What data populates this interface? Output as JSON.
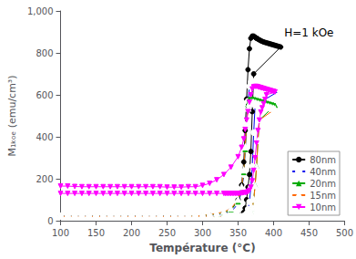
{
  "chart_data": {
    "type": "line",
    "xlabel": "Température (°C)",
    "ylabel": "M₁ₖₒₑ (emu/cm³)",
    "xlim": [
      100,
      500
    ],
    "ylim": [
      0,
      1000
    ],
    "xticks": [
      100,
      150,
      200,
      250,
      300,
      350,
      400,
      450,
      500
    ],
    "yticks": [
      0,
      200,
      400,
      600,
      800,
      1000
    ],
    "grid": false,
    "legend": "lower right",
    "annotations": [
      {
        "text": "H=1 kOe",
        "x": 415,
        "y": 870
      }
    ],
    "series": [
      {
        "name": "80nm",
        "color": "#000000",
        "marker": "circle",
        "x": [
          100,
          110,
          120,
          130,
          140,
          150,
          160,
          170,
          180,
          190,
          200,
          210,
          220,
          230,
          240,
          250,
          260,
          270,
          280,
          290,
          300,
          310,
          320,
          330,
          340,
          350,
          355,
          358,
          360,
          362,
          364,
          366,
          368,
          370,
          372,
          374,
          375,
          376,
          377,
          378,
          380,
          382,
          384,
          386,
          388,
          390,
          392,
          394,
          396,
          398,
          400,
          402,
          404,
          406,
          408,
          410,
          372,
          370,
          368,
          366,
          364,
          362,
          360,
          358,
          356,
          354,
          352,
          350,
          348,
          346,
          344,
          342,
          340,
          338,
          336,
          334,
          332,
          330,
          320,
          310,
          300,
          290,
          280,
          270,
          260,
          250,
          240,
          230,
          220,
          210,
          200,
          190,
          180,
          170,
          160,
          150,
          140,
          130,
          120,
          110,
          100
        ],
        "values": [
          20,
          20,
          20,
          20,
          20,
          20,
          20,
          20,
          20,
          20,
          20,
          20,
          20,
          20,
          20,
          20,
          20,
          20,
          20,
          20,
          22,
          25,
          28,
          35,
          50,
          100,
          170,
          280,
          430,
          580,
          720,
          820,
          870,
          880,
          880,
          875,
          872,
          870,
          868,
          866,
          862,
          858,
          855,
          852,
          850,
          848,
          846,
          844,
          842,
          840,
          838,
          836,
          834,
          832,
          830,
          828,
          700,
          520,
          330,
          220,
          160,
          100,
          60,
          40,
          30,
          25,
          22,
          20,
          20,
          20,
          20,
          20,
          20,
          20,
          20,
          20,
          20,
          20,
          20,
          20,
          20,
          20,
          20,
          20,
          20,
          20,
          20,
          20,
          20,
          20,
          20,
          20,
          20,
          20,
          20,
          20,
          20,
          20,
          20,
          20,
          20
        ]
      },
      {
        "name": "40nm",
        "color": "#0000ee",
        "marker": "circle-open",
        "x": [
          100,
          110,
          120,
          130,
          140,
          150,
          160,
          170,
          180,
          190,
          200,
          210,
          220,
          230,
          240,
          250,
          260,
          270,
          280,
          290,
          300,
          310,
          320,
          330,
          340,
          350,
          355,
          358,
          360,
          362,
          364,
          366,
          368,
          370,
          372,
          374,
          376,
          378,
          380,
          382,
          384,
          386,
          388,
          390,
          392,
          394,
          396,
          398,
          400,
          402,
          404,
          406,
          408,
          410,
          374,
          372,
          370,
          368,
          366,
          364,
          362,
          360,
          358,
          356,
          354,
          352,
          350,
          348,
          346,
          344,
          342,
          340,
          338,
          336,
          334,
          332,
          330,
          320,
          310,
          300,
          290,
          280,
          270,
          260,
          250,
          240,
          230,
          220,
          210,
          200,
          190,
          180,
          170,
          160,
          150,
          140,
          130,
          120,
          110,
          100
        ],
        "values": [
          20,
          20,
          20,
          20,
          20,
          20,
          20,
          20,
          20,
          20,
          20,
          20,
          20,
          20,
          20,
          20,
          20,
          20,
          20,
          20,
          20,
          22,
          25,
          30,
          42,
          80,
          140,
          220,
          340,
          460,
          570,
          640,
          660,
          665,
          665,
          663,
          660,
          658,
          655,
          652,
          650,
          648,
          645,
          643,
          641,
          639,
          637,
          635,
          633,
          631,
          629,
          627,
          625,
          623,
          550,
          420,
          260,
          160,
          90,
          55,
          35,
          25,
          22,
          20,
          20,
          20,
          20,
          20,
          20,
          20,
          20,
          20,
          20,
          20,
          20,
          20,
          20,
          20,
          20,
          20,
          20,
          20,
          20,
          20,
          20,
          20,
          20,
          20,
          20,
          20,
          20,
          20,
          20,
          20,
          20,
          20,
          20,
          20,
          20,
          20
        ]
      },
      {
        "name": "20nm",
        "color": "#00aa00",
        "marker": "triangle",
        "x": [
          100,
          110,
          120,
          130,
          140,
          150,
          160,
          170,
          180,
          190,
          200,
          210,
          220,
          230,
          240,
          250,
          260,
          270,
          280,
          290,
          300,
          310,
          320,
          330,
          340,
          350,
          355,
          358,
          360,
          362,
          364,
          366,
          368,
          370,
          372,
          374,
          376,
          378,
          380,
          382,
          384,
          386,
          388,
          390,
          392,
          394,
          396,
          398,
          400,
          402,
          380,
          378,
          376,
          374,
          372,
          370,
          368,
          366,
          364,
          362,
          360,
          358,
          356,
          354,
          352,
          350,
          348,
          346,
          344,
          342,
          340,
          338,
          336,
          334,
          332,
          330,
          320,
          310,
          300,
          290,
          280,
          270,
          260,
          250,
          240,
          230,
          220,
          210,
          200,
          190,
          180,
          170,
          160,
          150,
          140,
          130,
          120,
          110,
          100
        ],
        "values": [
          20,
          20,
          20,
          20,
          20,
          20,
          20,
          20,
          20,
          20,
          20,
          20,
          20,
          20,
          20,
          20,
          20,
          20,
          20,
          22,
          25,
          28,
          32,
          38,
          52,
          90,
          150,
          230,
          340,
          460,
          555,
          580,
          582,
          582,
          580,
          578,
          576,
          574,
          572,
          570,
          568,
          566,
          564,
          562,
          560,
          558,
          556,
          554,
          552,
          550,
          480,
          380,
          260,
          170,
          100,
          60,
          40,
          28,
          22,
          20,
          20,
          20,
          20,
          20,
          20,
          20,
          20,
          20,
          20,
          20,
          20,
          20,
          20,
          20,
          20,
          20,
          20,
          20,
          20,
          20,
          20,
          20,
          20,
          20,
          20,
          20,
          20,
          20,
          20,
          20,
          20,
          20,
          20,
          20,
          20,
          20,
          20,
          20,
          20
        ]
      },
      {
        "name": "15nm",
        "color": "#ff6600",
        "marker": "triangle-open",
        "x": [
          100,
          110,
          120,
          130,
          140,
          150,
          160,
          170,
          180,
          190,
          200,
          210,
          220,
          230,
          240,
          250,
          260,
          270,
          280,
          290,
          300,
          310,
          320,
          330,
          340,
          350,
          355,
          358,
          360,
          362,
          364,
          366,
          368,
          370,
          372,
          374,
          376,
          378,
          380,
          382,
          384,
          386,
          388,
          390,
          392,
          394,
          396,
          398,
          400,
          402,
          380,
          378,
          376,
          374,
          372,
          370,
          368,
          366,
          364,
          362,
          360,
          358,
          356,
          354,
          352,
          350,
          348,
          346,
          344,
          342,
          340,
          338,
          336,
          334,
          332,
          330,
          320,
          310,
          300,
          290,
          280,
          270,
          260,
          250,
          240,
          230,
          220,
          210,
          200,
          190,
          180,
          170,
          160,
          150,
          140,
          130,
          120,
          110,
          100
        ],
        "values": [
          20,
          20,
          20,
          20,
          20,
          20,
          20,
          20,
          20,
          20,
          20,
          20,
          20,
          20,
          20,
          20,
          20,
          20,
          20,
          22,
          25,
          28,
          35,
          42,
          58,
          100,
          160,
          240,
          350,
          460,
          535,
          558,
          562,
          563,
          562,
          560,
          558,
          556,
          554,
          552,
          550,
          548,
          546,
          544,
          542,
          540,
          538,
          536,
          534,
          532,
          480,
          380,
          255,
          165,
          100,
          60,
          38,
          27,
          22,
          20,
          20,
          20,
          20,
          20,
          20,
          20,
          20,
          20,
          20,
          20,
          20,
          20,
          20,
          20,
          20,
          20,
          20,
          20,
          20,
          20,
          20,
          20,
          20,
          20,
          20,
          20,
          20,
          20,
          20,
          20,
          20,
          20,
          20,
          20,
          20,
          20,
          20,
          20,
          20
        ]
      },
      {
        "name": "10nm",
        "color": "#ff00ff",
        "marker": "triangle-down",
        "x": [
          100,
          110,
          120,
          130,
          140,
          150,
          160,
          170,
          180,
          190,
          200,
          210,
          220,
          230,
          240,
          250,
          260,
          270,
          280,
          290,
          300,
          310,
          320,
          330,
          340,
          350,
          355,
          358,
          360,
          362,
          364,
          366,
          368,
          370,
          372,
          374,
          376,
          378,
          380,
          382,
          384,
          386,
          388,
          390,
          392,
          394,
          396,
          398,
          400,
          402,
          390,
          388,
          386,
          384,
          382,
          380,
          378,
          376,
          374,
          372,
          370,
          368,
          366,
          364,
          362,
          360,
          358,
          356,
          354,
          352,
          350,
          348,
          346,
          344,
          342,
          340,
          338,
          336,
          334,
          332,
          330,
          320,
          310,
          300,
          290,
          280,
          270,
          260,
          250,
          240,
          230,
          220,
          210,
          200,
          190,
          180,
          170,
          160,
          150,
          140,
          130,
          120,
          110,
          100
        ],
        "values": [
          165,
          165,
          163,
          162,
          162,
          162,
          162,
          162,
          162,
          162,
          162,
          162,
          162,
          162,
          162,
          160,
          160,
          160,
          162,
          162,
          168,
          178,
          195,
          220,
          255,
          305,
          350,
          390,
          435,
          480,
          520,
          565,
          600,
          628,
          638,
          640,
          640,
          638,
          636,
          634,
          632,
          630,
          628,
          626,
          624,
          622,
          620,
          618,
          616,
          614,
          600,
          578,
          558,
          538,
          518,
          480,
          430,
          370,
          300,
          240,
          190,
          160,
          145,
          138,
          135,
          134,
          133,
          132,
          131,
          130,
          130,
          130,
          130,
          130,
          130,
          130,
          130,
          130,
          130,
          130,
          130,
          130,
          130,
          130,
          130,
          130,
          130,
          130,
          130,
          130,
          130,
          130,
          130,
          130,
          130,
          130,
          130,
          130,
          130,
          130,
          130,
          130,
          130,
          130
        ]
      }
    ]
  }
}
